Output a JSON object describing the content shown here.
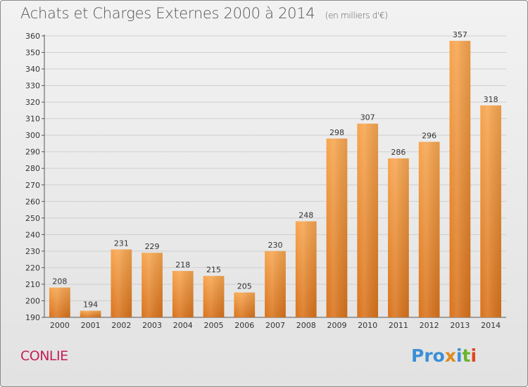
{
  "header": {
    "title": "Achats et Charges Externes 2000 à 2014",
    "unit": "(en milliers d'€)"
  },
  "footer": {
    "commune": "CONLIE",
    "logo_parts": [
      "Pro",
      "x",
      "i",
      "t",
      "i"
    ]
  },
  "colors": {
    "bar_light": "#f7a650",
    "bar_dark": "#d9731c",
    "commune": "#c41e57",
    "grid": "#cfcfcf"
  },
  "chart_data": {
    "type": "bar",
    "title": "Achats et Charges Externes 2000 à 2014",
    "subtitle": "(en milliers d'€)",
    "categories": [
      "2000",
      "2001",
      "2002",
      "2003",
      "2004",
      "2005",
      "2006",
      "2007",
      "2008",
      "2009",
      "2010",
      "2011",
      "2012",
      "2013",
      "2014"
    ],
    "values": [
      208,
      194,
      231,
      229,
      218,
      215,
      205,
      230,
      248,
      298,
      307,
      286,
      296,
      357,
      318
    ],
    "ylim": [
      190,
      360
    ],
    "yticks": [
      190,
      200,
      210,
      220,
      230,
      240,
      250,
      260,
      270,
      280,
      290,
      300,
      310,
      320,
      330,
      340,
      350,
      360
    ],
    "grid": true,
    "show_value_labels": true
  }
}
